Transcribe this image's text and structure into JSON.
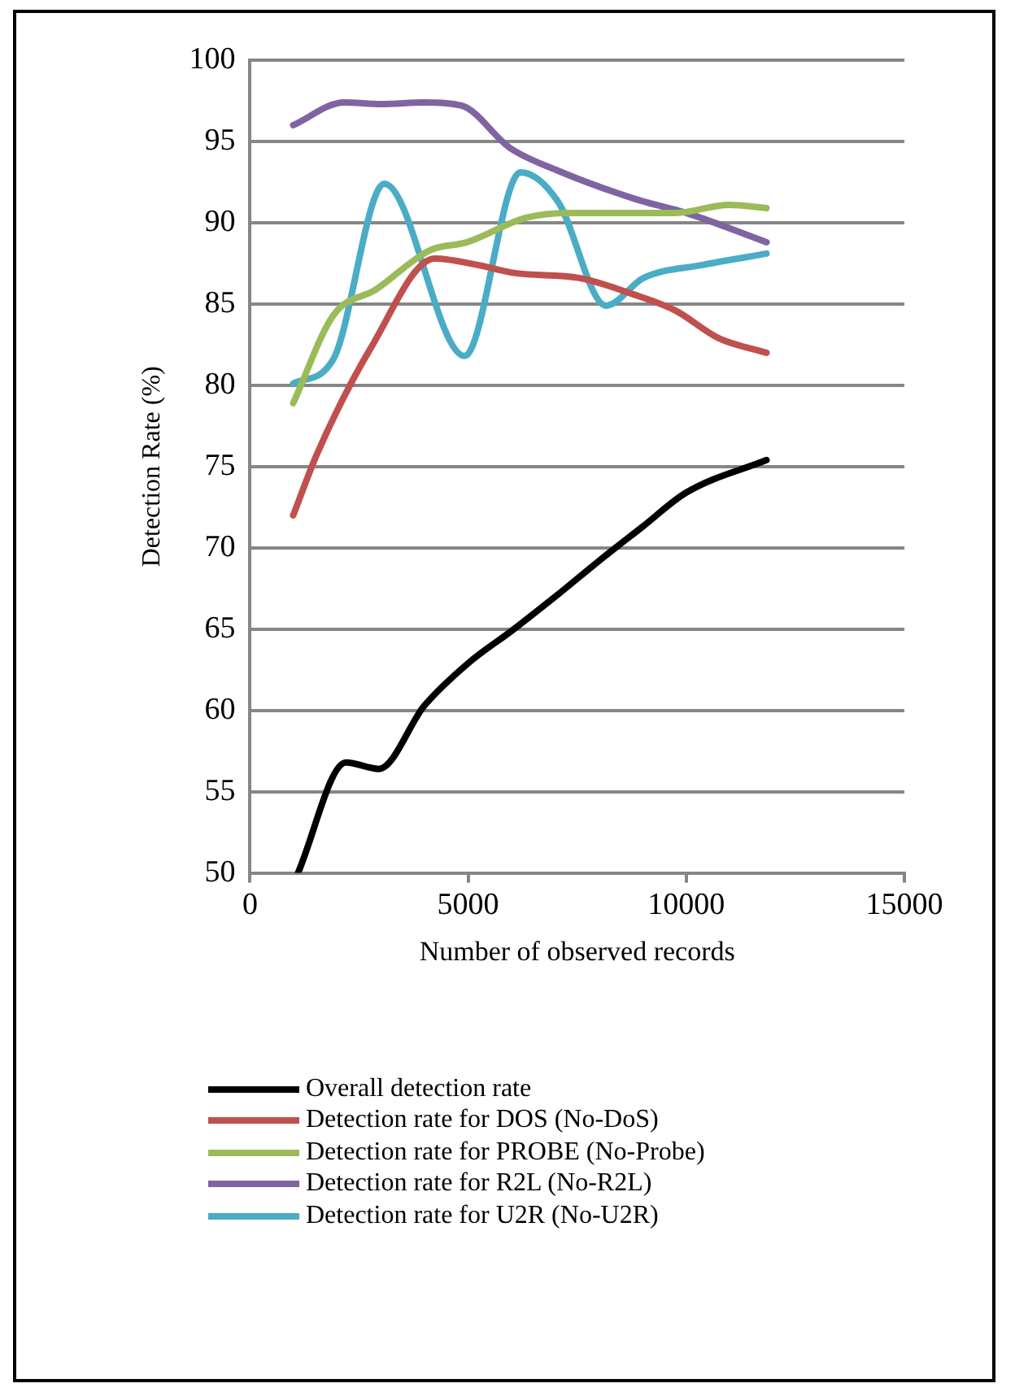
{
  "chart_data": {
    "type": "line",
    "xlabel": "Number of observed records",
    "ylabel": "Detection Rate (%)",
    "xlim": [
      0,
      15000
    ],
    "xticks": [
      0,
      5000,
      10000,
      15000
    ],
    "ylim": [
      50,
      100
    ],
    "yticks": [
      50,
      55,
      60,
      65,
      70,
      75,
      80,
      85,
      90,
      95,
      100
    ],
    "grid": "y",
    "legend": "bottom",
    "marker": "none",
    "line_style": "solid",
    "series": [
      {
        "name": "Overall detection rate",
        "color": "#000000",
        "x": [
          1100,
          2200,
          2950,
          4000,
          5000,
          6000,
          7000,
          8000,
          9000,
          10000,
          11840
        ],
        "values": [
          50,
          56.8,
          56.4,
          60.3,
          62.9,
          64.9,
          67,
          69.2,
          71.3,
          73.4,
          75.4
        ]
      },
      {
        "name": "Detection rate for DOS (No-DoS)",
        "color": "#c0504d",
        "x": [
          990,
          1540,
          2770,
          4240,
          5220,
          6080,
          7550,
          8780,
          9750,
          10740,
          11840
        ],
        "values": [
          72,
          75.8,
          82.3,
          87.8,
          87.4,
          86.9,
          86.6,
          85.6,
          84.6,
          82.9,
          82
        ]
      },
      {
        "name": "Detection rate for PROBE (No-Probe)",
        "color": "#9bbb59",
        "x": [
          990,
          1910,
          2890,
          4120,
          4975,
          6320,
          7300,
          8780,
          9750,
          10980,
          11840
        ],
        "values": [
          78.9,
          84.3,
          85.9,
          88.3,
          88.8,
          90.3,
          90.6,
          90.6,
          90.6,
          91.1,
          90.9
        ]
      },
      {
        "name": "Detection rate for R2L (No-R2L)",
        "color": "#8064a2",
        "x": [
          990,
          2160,
          3010,
          4000,
          4850,
          5960,
          7060,
          8900,
          10000,
          11840
        ],
        "values": [
          96,
          97.4,
          97.3,
          97.4,
          97.2,
          94.6,
          93.2,
          91.4,
          90.6,
          88.8
        ]
      },
      {
        "name": "Detection rate for U2R (No-U2R)",
        "color": "#4bacc6",
        "x": [
          990,
          1910,
          3080,
          4920,
          6200,
          7060,
          8160,
          9020,
          10370,
          11840
        ],
        "values": [
          80.1,
          81.6,
          92.4,
          81.8,
          93.1,
          91.3,
          84.9,
          86.6,
          87.4,
          88.1
        ]
      }
    ]
  }
}
